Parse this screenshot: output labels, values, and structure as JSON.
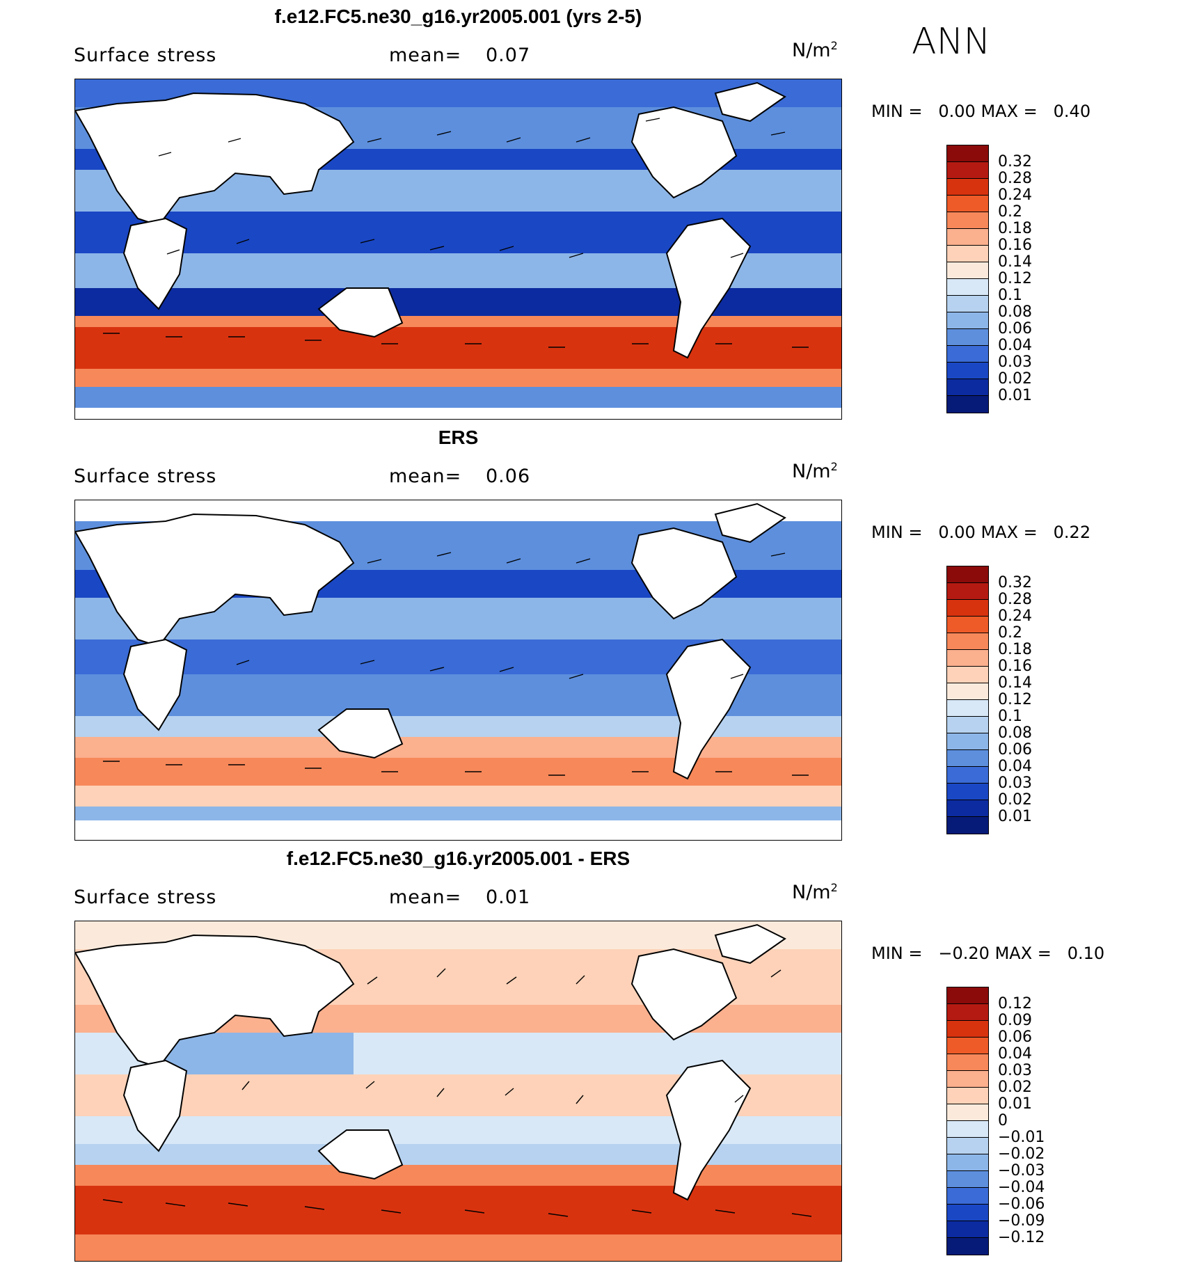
{
  "season": "ANN",
  "panels": [
    {
      "title": "f.e12.FC5.ne30_g16.yr2005.001 (yrs 2-5)",
      "variable": "Surface stress",
      "mean_label": "mean=",
      "mean_value": "0.07",
      "units": "N/m",
      "units_exp": "2",
      "min_label": "MIN =",
      "min_value": "0.00",
      "max_label": "MAX =",
      "max_value": "0.40",
      "colorbar_labels": [
        "0.32",
        "0.28",
        "0.24",
        "0.2",
        "0.18",
        "0.16",
        "0.14",
        "0.12",
        "0.1",
        "0.08",
        "0.06",
        "0.04",
        "0.03",
        "0.02",
        "0.01"
      ],
      "colorbar_colors": [
        "#8b0a0a",
        "#b51a12",
        "#d8330f",
        "#ee5a28",
        "#f7885a",
        "#fbb08e",
        "#fdd2b8",
        "#fbeadc",
        "#d8e8f7",
        "#b6d2f0",
        "#8db6e8",
        "#5d8fdd",
        "#3a6bd6",
        "#1a47c4",
        "#0c2ba0",
        "#061a78"
      ]
    },
    {
      "title": "ERS",
      "variable": "Surface stress",
      "mean_label": "mean=",
      "mean_value": "0.06",
      "units": "N/m",
      "units_exp": "2",
      "min_label": "MIN =",
      "min_value": "0.00",
      "max_label": "MAX =",
      "max_value": "0.22",
      "colorbar_labels": [
        "0.32",
        "0.28",
        "0.24",
        "0.2",
        "0.18",
        "0.16",
        "0.14",
        "0.12",
        "0.1",
        "0.08",
        "0.06",
        "0.04",
        "0.03",
        "0.02",
        "0.01"
      ],
      "colorbar_colors": [
        "#8b0a0a",
        "#b51a12",
        "#d8330f",
        "#ee5a28",
        "#f7885a",
        "#fbb08e",
        "#fdd2b8",
        "#fbeadc",
        "#d8e8f7",
        "#b6d2f0",
        "#8db6e8",
        "#5d8fdd",
        "#3a6bd6",
        "#1a47c4",
        "#0c2ba0",
        "#061a78"
      ]
    },
    {
      "title": "f.e12.FC5.ne30_g16.yr2005.001 - ERS",
      "variable": "Surface stress",
      "mean_label": "mean=",
      "mean_value": "0.01",
      "units": "N/m",
      "units_exp": "2",
      "min_label": "MIN =",
      "min_value": "−0.20",
      "max_label": "MAX =",
      "max_value": "0.10",
      "colorbar_labels": [
        "0.12",
        "0.09",
        "0.06",
        "0.04",
        "0.03",
        "0.02",
        "0.01",
        "0",
        "−0.01",
        "−0.02",
        "−0.03",
        "−0.04",
        "−0.06",
        "−0.09",
        "−0.12"
      ],
      "colorbar_colors": [
        "#8b0a0a",
        "#b51a12",
        "#d8330f",
        "#ee5a28",
        "#f7885a",
        "#fbb08e",
        "#fdd2b8",
        "#fbeadc",
        "#d8e8f7",
        "#b6d2f0",
        "#8db6e8",
        "#5d8fdd",
        "#3a6bd6",
        "#1a47c4",
        "#0c2ba0",
        "#061a78"
      ]
    }
  ]
}
